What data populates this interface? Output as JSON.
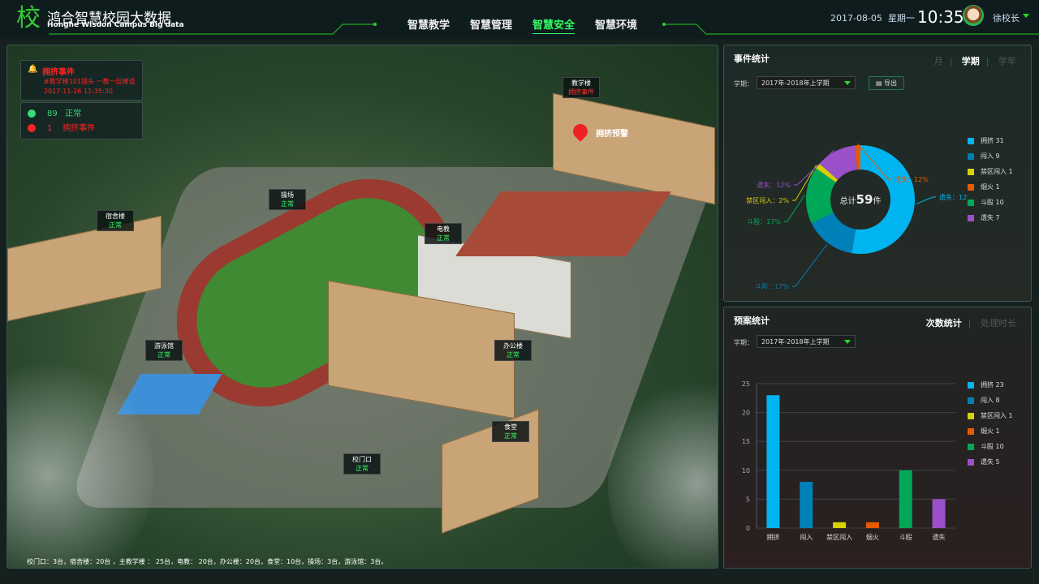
{
  "header": {
    "logo_char": "校",
    "title": "鸿合智慧校园大数据",
    "subtitle": "Honghe Wisdon Campus Big data",
    "nav": [
      {
        "label": "智慧教学"
      },
      {
        "label": "智慧管理"
      },
      {
        "label": "智慧安全",
        "active": true
      },
      {
        "label": "智慧环境"
      }
    ],
    "date": "2017-08-05",
    "weekday": "星期一",
    "time": "10:35",
    "user": "徐校长"
  },
  "map": {
    "alarm": {
      "title": "拥挤事件",
      "location": "#教学楼101镜头  一教一层楼道",
      "time": "2017-11-26  11:35:30"
    },
    "stats": [
      {
        "count": "89",
        "label": "正常",
        "color": "#33dd77"
      },
      {
        "count": "1",
        "label": "拥挤事件",
        "color": "#ff2222"
      }
    ],
    "buildings": [
      {
        "name": "宿舍楼",
        "status": "正常"
      },
      {
        "name": "操场",
        "status": "正常"
      },
      {
        "name": "教学楼",
        "status": "拥挤事件",
        "alert": true
      },
      {
        "name": "电教",
        "status": "正常"
      },
      {
        "name": "游泳馆",
        "status": "正常"
      },
      {
        "name": "办公楼",
        "status": "正常"
      },
      {
        "name": "食堂",
        "status": "正常"
      },
      {
        "name": "校门口",
        "status": "正常"
      }
    ],
    "pin_label": "拥挤预警",
    "footer": "校门口：3台，宿舍楼：20台 ，主教学楼 ： 25台，电教： 20台，办公楼：20台，食堂：10台，操场：3台，游泳馆：3台。"
  },
  "events": {
    "title": "事件统计",
    "tabs": [
      "月",
      "学期",
      "学年"
    ],
    "active_tab": "学期",
    "term_label": "学期：",
    "term_value": "2017年-2018年上学期",
    "export_label": "导出",
    "center_prefix": "总计",
    "center_total": "59",
    "center_suffix": "件"
  },
  "plans": {
    "title": "预案统计",
    "tabs": [
      "次数统计",
      "处理时长"
    ],
    "active_tab": "次数统计",
    "term_label": "学期：",
    "term_value": "2017年-2018年上学期"
  },
  "chart_data": [
    {
      "type": "pie",
      "donut": true,
      "categories": [
        "拥挤",
        "闯入",
        "斗殴",
        "禁区闯入",
        "遗失",
        "烟火"
      ],
      "values": [
        31,
        9,
        10,
        1,
        7,
        1
      ],
      "colors": [
        "#00b4f0",
        "#0080b8",
        "#00a858",
        "#d8d000",
        "#9a50c8",
        "#e85a00"
      ],
      "slice_labels": [
        "遗失：12%",
        "斗殴：17%",
        "斗殴：17%",
        "禁区闯入：2%",
        "遗失：12%",
        "遗失：12%"
      ],
      "legend": [
        "拥挤  31",
        "闯入  9",
        "禁区闯入  1",
        "烟火   1",
        "斗殴   10",
        "遗失  7"
      ],
      "legend_colors": [
        "#00b4f0",
        "#0080b8",
        "#d8d000",
        "#e85a00",
        "#00a858",
        "#9a50c8"
      ],
      "legend_position": "right"
    },
    {
      "type": "bar",
      "categories": [
        "拥挤",
        "闯入",
        "禁区闯入",
        "烟火",
        "斗殴",
        "遗失"
      ],
      "values": [
        23,
        8,
        1,
        1,
        10,
        5
      ],
      "colors": [
        "#00b4f0",
        "#0080b8",
        "#d8d000",
        "#e85a00",
        "#00a858",
        "#9a50c8"
      ],
      "yticks": [
        0,
        5,
        10,
        15,
        20,
        25
      ],
      "ylim": [
        0,
        25
      ],
      "grid": true,
      "legend": [
        "拥挤  23",
        "闯入  8",
        "禁区闯入  1",
        "烟火   1",
        "斗殴   10",
        "遗失  5"
      ],
      "legend_position": "right"
    }
  ]
}
